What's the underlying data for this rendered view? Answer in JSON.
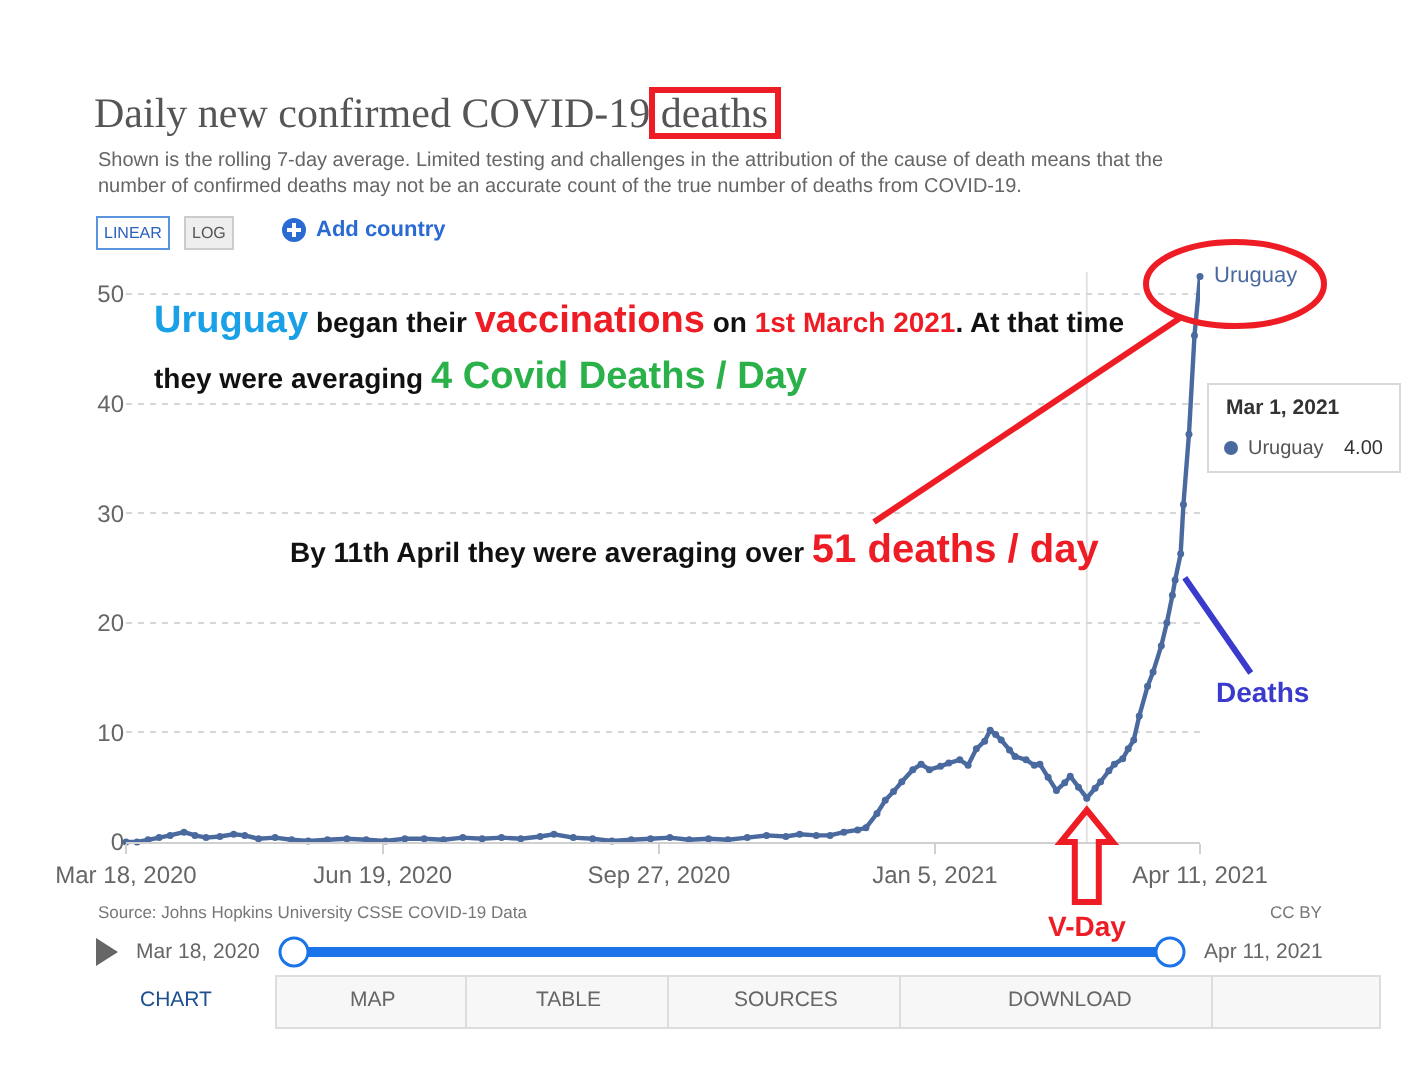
{
  "chart_data": {
    "type": "line",
    "title": "Daily new confirmed COVID-19 deaths",
    "subtitle": "Shown is the rolling 7-day average. Limited testing and challenges in the attribution of the cause of death means that the number of confirmed deaths may not be an accurate count of the true number of deaths from COVID-19.",
    "series": [
      {
        "name": "Uruguay",
        "color": "#4a6a9f",
        "x": [
          "2020-03-18",
          "2020-03-22",
          "2020-03-26",
          "2020-03-30",
          "2020-04-03",
          "2020-04-08",
          "2020-04-12",
          "2020-04-16",
          "2020-04-21",
          "2020-04-26",
          "2020-04-30",
          "2020-05-05",
          "2020-05-11",
          "2020-05-17",
          "2020-05-23",
          "2020-05-30",
          "2020-06-06",
          "2020-06-13",
          "2020-06-20",
          "2020-06-27",
          "2020-07-04",
          "2020-07-11",
          "2020-07-18",
          "2020-07-25",
          "2020-08-01",
          "2020-08-08",
          "2020-08-15",
          "2020-08-20",
          "2020-08-27",
          "2020-09-03",
          "2020-09-10",
          "2020-09-17",
          "2020-09-24",
          "2020-10-01",
          "2020-10-08",
          "2020-10-15",
          "2020-10-22",
          "2020-10-29",
          "2020-11-05",
          "2020-11-12",
          "2020-11-17",
          "2020-11-23",
          "2020-11-28",
          "2020-12-03",
          "2020-12-08",
          "2020-12-11",
          "2020-12-15",
          "2020-12-18",
          "2020-12-21",
          "2020-12-24",
          "2020-12-28",
          "2020-12-31",
          "2021-01-03",
          "2021-01-07",
          "2021-01-10",
          "2021-01-14",
          "2021-01-17",
          "2021-01-20",
          "2021-01-23",
          "2021-01-25",
          "2021-01-27",
          "2021-01-29",
          "2021-02-01",
          "2021-02-03",
          "2021-02-07",
          "2021-02-10",
          "2021-02-12",
          "2021-02-15",
          "2021-02-18",
          "2021-02-21",
          "2021-02-23",
          "2021-02-26",
          "2021-03-01",
          "2021-03-04",
          "2021-03-06",
          "2021-03-09",
          "2021-03-11",
          "2021-03-14",
          "2021-03-16",
          "2021-03-18",
          "2021-03-20",
          "2021-03-23",
          "2021-03-25",
          "2021-03-28",
          "2021-03-30",
          "2021-04-01",
          "2021-04-02",
          "2021-04-04",
          "2021-04-05",
          "2021-04-07",
          "2021-04-09",
          "2021-04-11"
        ],
        "values": [
          0,
          0,
          0.2,
          0.4,
          0.6,
          0.9,
          0.6,
          0.4,
          0.5,
          0.7,
          0.6,
          0.3,
          0.4,
          0.2,
          0.1,
          0.2,
          0.3,
          0.2,
          0.1,
          0.3,
          0.3,
          0.2,
          0.4,
          0.3,
          0.4,
          0.3,
          0.5,
          0.7,
          0.4,
          0.3,
          0.1,
          0.2,
          0.3,
          0.4,
          0.2,
          0.3,
          0.2,
          0.4,
          0.6,
          0.5,
          0.7,
          0.6,
          0.6,
          0.9,
          1.1,
          1.3,
          2.6,
          3.8,
          4.6,
          5.5,
          6.6,
          7.1,
          6.6,
          6.9,
          7.2,
          7.5,
          7.0,
          8.5,
          9.2,
          10.2,
          9.8,
          9.3,
          8.4,
          7.8,
          7.5,
          7.0,
          7.1,
          5.9,
          4.7,
          5.4,
          6.0,
          5.0,
          4.0,
          4.9,
          5.5,
          6.5,
          7.1,
          7.6,
          8.5,
          9.3,
          11.5,
          14.2,
          15.5,
          17.9,
          20.0,
          22.5,
          23.9,
          26.3,
          30.8,
          37.2,
          46.2,
          51.6
        ]
      }
    ],
    "xlim": [
      "2020-03-18",
      "2021-04-11"
    ],
    "xticks": [
      {
        "value": "2020-03-18",
        "label": "Mar 18, 2020"
      },
      {
        "value": "2020-06-19",
        "label": "Jun 19, 2020"
      },
      {
        "value": "2020-09-27",
        "label": "Sep 27, 2020"
      },
      {
        "value": "2021-01-05",
        "label": "Jan 5, 2021"
      },
      {
        "value": "2021-04-11",
        "label": "Apr 11, 2021"
      }
    ],
    "ylim": [
      0,
      52
    ],
    "yticks": [
      0,
      10,
      20,
      30,
      40,
      50
    ],
    "grid": "y",
    "legend": false,
    "marker": "circle",
    "line_style": "solid",
    "ref_lines": [
      {
        "axis": "x",
        "value": "2021-03-01",
        "color": "#e3e3e3"
      }
    ],
    "annotations": [
      "Uruguay",
      "began their",
      "vaccinations",
      "on",
      "1st March 2021",
      ". At that time",
      "they were averaging",
      "4 Covid Deaths / Day",
      "By 11th April they were averaging over",
      "51 deaths / day",
      {
        "text": "Deaths",
        "x": "2021-04-03",
        "y": 25
      },
      "V-Day",
      "Mar 1, 2021",
      "Uruguay",
      "4.00",
      "LINEAR",
      "LOG",
      "Add country",
      "Source: Johns Hopkins University CSSE COVID-19 Data",
      "CC BY",
      "Mar 18, 2020",
      "Apr 11, 2021",
      "CHART",
      "MAP",
      "TABLE",
      "SOURCES",
      "DOWNLOAD"
    ]
  }
}
